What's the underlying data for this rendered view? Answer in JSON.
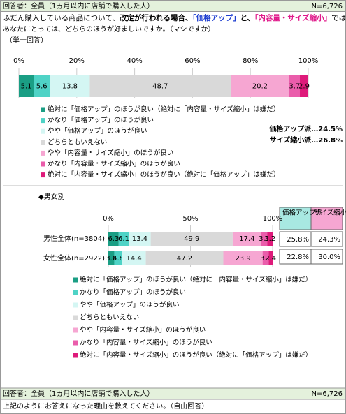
{
  "header": {
    "respondents": "回答者：全員（1ヵ月以内に店舗で購入した人）",
    "n": "N=6,726"
  },
  "question": {
    "part1": "ふだん購入している商品について、",
    "part2": "改定が行われる場合、",
    "part3": "「価格アップ」",
    "part4": "と、",
    "part5": "「内容量・サイズ縮小」",
    "part6": "では、",
    "line2": "あなたにとっては、どちらのほうが好ましいですか。（マシですか）",
    "answer_type": "（単一回答）"
  },
  "summary": [
    "価格アップ派…24.5%",
    "サイズ縮小派…26.8%"
  ],
  "section_title": "◆男女別",
  "table": {
    "header": [
      "価格アップ派",
      "サイズ縮小派"
    ],
    "rows": [
      [
        "25.8%",
        "24.3%"
      ],
      [
        "22.8%",
        "30.0%"
      ]
    ]
  },
  "chart_data": [
    {
      "type": "bar",
      "orientation": "horizontal",
      "stacked": true,
      "grid": true,
      "categories": [
        null
      ],
      "xlim": [
        0,
        100
      ],
      "xticks": [
        {
          "value": 0,
          "label": "0%"
        },
        {
          "value": 20,
          "label": "20%"
        },
        {
          "value": 40,
          "label": "40%"
        },
        {
          "value": 60,
          "label": "60%"
        },
        {
          "value": 80,
          "label": "80%"
        },
        {
          "value": 100,
          "label": "100%"
        }
      ],
      "series": [
        {
          "name": "絶対に「価格アップ」のほうが良い（絶対に「内容量・サイズ縮小」は嫌だ）",
          "color": "#1a9e84",
          "values": [
            5.1
          ]
        },
        {
          "name": "かなり「価格アップ」のほうが良い",
          "color": "#4fd3c6",
          "values": [
            5.6
          ]
        },
        {
          "name": "やや「価格アップ」のほうが良い",
          "color": "#d4f6f3",
          "values": [
            13.8
          ]
        },
        {
          "name": "どちらともいえない",
          "color": "#d9d9d9",
          "values": [
            48.7
          ]
        },
        {
          "name": "やや「内容量・サイズ縮小」のほうが良い",
          "color": "#f6a6d2",
          "values": [
            20.2
          ]
        },
        {
          "name": "かなり「内容量・サイズ縮小」のほうが良い",
          "color": "#ea5dab",
          "values": [
            3.7
          ]
        },
        {
          "name": "絶対に「内容量・サイズ縮小」のほうが良い（絶対に「価格アップ」は嫌だ）",
          "color": "#de1a7a",
          "values": [
            2.9
          ]
        }
      ]
    },
    {
      "type": "bar",
      "orientation": "horizontal",
      "stacked": true,
      "grid": true,
      "categories": [
        "男性全体(n=3804)",
        "女性全体(n=2922)"
      ],
      "xlim": [
        0,
        100
      ],
      "xticks": [
        {
          "value": 0,
          "label": "0%"
        },
        {
          "value": 50,
          "label": "50%"
        },
        {
          "value": 100,
          "label": "100%"
        }
      ],
      "series": [
        {
          "name": "絶対に「価格アップ」のほうが良い（絶対に「内容量・サイズ縮小」は嫌だ）",
          "color": "#1a9e84",
          "values": [
            6.3,
            3.6
          ]
        },
        {
          "name": "かなり「価格アップ」のほうが良い",
          "color": "#4fd3c6",
          "values": [
            6.1,
            4.8
          ]
        },
        {
          "name": "やや「価格アップ」のほうが良い",
          "color": "#d4f6f3",
          "values": [
            13.4,
            14.4
          ]
        },
        {
          "name": "どちらともいえない",
          "color": "#d9d9d9",
          "values": [
            49.9,
            47.2
          ]
        },
        {
          "name": "やや「内容量・サイズ縮小」のほうが良い",
          "color": "#f6a6d2",
          "values": [
            17.4,
            23.9
          ]
        },
        {
          "name": "かなり「内容量・サイズ縮小」のほうが良い",
          "color": "#ea5dab",
          "values": [
            3.7,
            3.7
          ]
        },
        {
          "name": "絶対に「内容量・サイズ縮小」のほうが良い（絶対に「価格アップ」は嫌だ）",
          "color": "#de1a7a",
          "values": [
            3.2,
            2.4
          ]
        }
      ]
    }
  ],
  "footer": {
    "respondents": "回答者：全員（1ヵ月以内に店舗で購入した人）",
    "n": "N=6,726",
    "question": "上記のようにお答えになった理由を教えてください。（自由回答）"
  }
}
